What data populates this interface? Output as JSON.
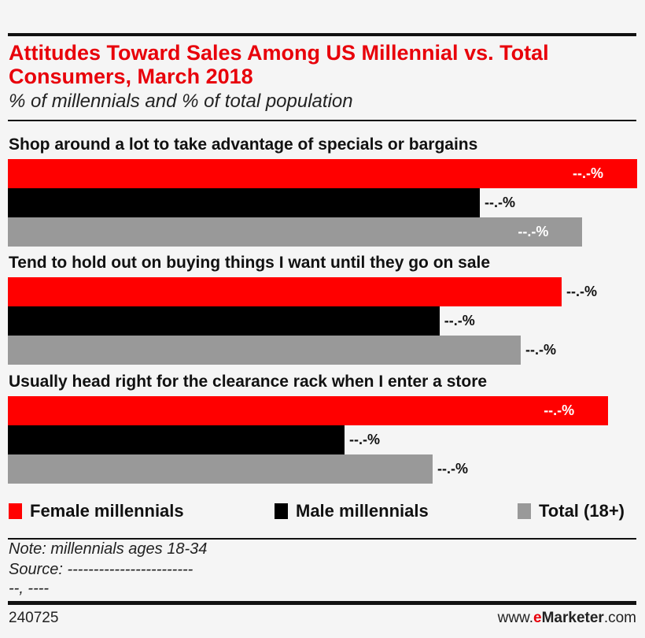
{
  "chart_data": {
    "type": "bar",
    "orientation": "horizontal",
    "title": "Attitudes Toward Sales Among US Millennial vs. Total Consumers, March 2018",
    "subtitle": "% of millennials and % of total population",
    "categories": [
      "Shop around a lot to take advantage of specials or bargains",
      "Tend to hold out on buying things I want until they go on sale",
      "Usually head right for the clearance rack when I enter a store"
    ],
    "series": [
      {
        "name": "Female millennials",
        "color": "#ff0000",
        "values": [
          100,
          88,
          95.4
        ],
        "labels": [
          "--.-%",
          "--.-%",
          "--.-%"
        ]
      },
      {
        "name": "Male millennials",
        "color": "#000000",
        "values": [
          75,
          68.6,
          53.5
        ],
        "labels": [
          "--.-%",
          "--.-%",
          "--.-%"
        ]
      },
      {
        "name": "Total (18+)",
        "color": "#999999",
        "values": [
          91.3,
          81.5,
          67.5
        ],
        "labels": [
          "--.-%",
          "--.-%",
          "--.-%"
        ]
      }
    ],
    "value_note": "bar values are relative estimates (largest bar = 100); actual values are masked as --.-%",
    "grid": false,
    "legend_position": "bottom"
  },
  "footer": {
    "note": "Note: millennials ages 18-34",
    "source": "Source: ------------------------",
    "source2": "--, ----",
    "id": "240725",
    "brand_pre": "www.",
    "brand_e": "e",
    "brand_main": "Marketer",
    "brand_post": ".com"
  }
}
